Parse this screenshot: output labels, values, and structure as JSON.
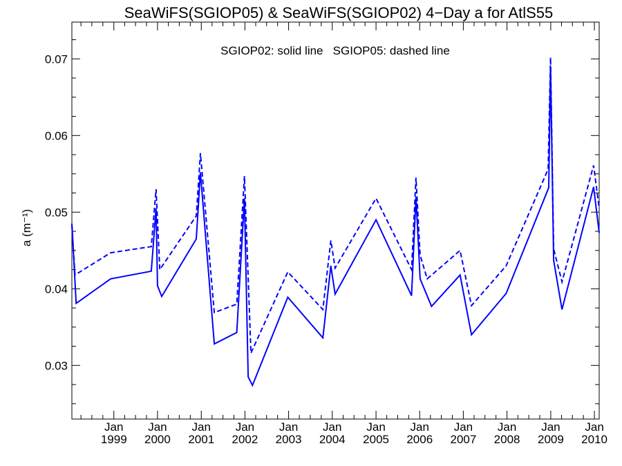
{
  "chart_data": {
    "type": "line",
    "title": "SeaWiFS(SGIOP05) & SeaWiFS(SGIOP02) 4−Day a for AtlS55",
    "annotation": "SGIOP02: solid line   SGIOP05: dashed line",
    "xlabel": "",
    "ylabel": "a (m⁻¹)",
    "xlim": [
      "1998-01-15",
      "2010-02-10"
    ],
    "ylim": [
      0.023,
      0.0748
    ],
    "yticks": [
      0.03,
      0.04,
      0.05,
      0.06,
      0.07
    ],
    "ytick_labels": [
      "0.03",
      "0.04",
      "0.05",
      "0.06",
      "0.07"
    ],
    "xticks": [
      "1999-01-01",
      "2000-01-01",
      "2001-01-01",
      "2002-01-01",
      "2003-01-01",
      "2004-01-01",
      "2005-01-01",
      "2006-01-01",
      "2007-01-01",
      "2008-01-01",
      "2009-01-01",
      "2010-01-01"
    ],
    "xtick_labels": [
      {
        "month": "Jan",
        "year": "1999"
      },
      {
        "month": "Jan",
        "year": "2000"
      },
      {
        "month": "Jan",
        "year": "2001"
      },
      {
        "month": "Jan",
        "year": "2002"
      },
      {
        "month": "Jan",
        "year": "2003"
      },
      {
        "month": "Jan",
        "year": "2004"
      },
      {
        "month": "Jan",
        "year": "2005"
      },
      {
        "month": "Jan",
        "year": "2006"
      },
      {
        "month": "Jan",
        "year": "2007"
      },
      {
        "month": "Jan",
        "year": "2008"
      },
      {
        "month": "Jan",
        "year": "2009"
      },
      {
        "month": "Jan",
        "year": "2010"
      }
    ],
    "series": [
      {
        "name": "SGIOP02",
        "style": "solid",
        "color": "#0000ff",
        "points": [
          [
            "1998-01-15",
            0.0485
          ],
          [
            "1998-02-20",
            0.0381
          ],
          [
            "1998-12-05",
            0.0413
          ],
          [
            "1999-11-10",
            0.0423
          ],
          [
            "1999-12-20",
            0.0505
          ],
          [
            "2000-01-01",
            0.0404
          ],
          [
            "2000-02-05",
            0.039
          ],
          [
            "2000-11-20",
            0.0465
          ],
          [
            "2000-12-25",
            0.0552
          ],
          [
            "2001-04-20",
            0.0328
          ],
          [
            "2001-10-25",
            0.0343
          ],
          [
            "2001-12-28",
            0.0518
          ],
          [
            "2002-01-28",
            0.0285
          ],
          [
            "2002-03-05",
            0.0274
          ],
          [
            "2002-12-25",
            0.0389
          ],
          [
            "2003-10-15",
            0.0336
          ],
          [
            "2003-12-20",
            0.043
          ],
          [
            "2004-01-25",
            0.0393
          ],
          [
            "2005-01-01",
            0.049
          ],
          [
            "2005-10-25",
            0.0391
          ],
          [
            "2005-12-01",
            0.052
          ],
          [
            "2006-01-05",
            0.0413
          ],
          [
            "2006-04-10",
            0.0377
          ],
          [
            "2006-12-05",
            0.0418
          ],
          [
            "2007-03-10",
            0.034
          ],
          [
            "2007-12-25",
            0.0394
          ],
          [
            "2008-12-15",
            0.0532
          ],
          [
            "2008-12-30",
            0.069
          ],
          [
            "2009-01-25",
            0.0437
          ],
          [
            "2009-04-05",
            0.0373
          ],
          [
            "2009-12-25",
            0.0533
          ],
          [
            "2010-02-10",
            0.0473
          ]
        ]
      },
      {
        "name": "SGIOP05",
        "style": "dashed",
        "color": "#0000ff",
        "points": [
          [
            "1998-01-15",
            0.0483
          ],
          [
            "1998-02-10",
            0.0418
          ],
          [
            "1998-12-05",
            0.0447
          ],
          [
            "1999-11-10",
            0.0455
          ],
          [
            "1999-12-20",
            0.053
          ],
          [
            "2000-01-20",
            0.0425
          ],
          [
            "2000-11-20",
            0.0495
          ],
          [
            "2000-12-25",
            0.0577
          ],
          [
            "2001-04-20",
            0.0369
          ],
          [
            "2001-10-25",
            0.038
          ],
          [
            "2001-12-28",
            0.0547
          ],
          [
            "2002-02-20",
            0.0316
          ],
          [
            "2002-12-25",
            0.0422
          ],
          [
            "2003-10-15",
            0.0373
          ],
          [
            "2003-12-20",
            0.0463
          ],
          [
            "2004-01-25",
            0.0427
          ],
          [
            "2005-01-01",
            0.0518
          ],
          [
            "2005-10-25",
            0.0425
          ],
          [
            "2005-12-01",
            0.0545
          ],
          [
            "2006-01-05",
            0.0444
          ],
          [
            "2006-03-05",
            0.0413
          ],
          [
            "2006-12-05",
            0.045
          ],
          [
            "2007-03-10",
            0.0378
          ],
          [
            "2007-12-25",
            0.043
          ],
          [
            "2008-12-10",
            0.0556
          ],
          [
            "2008-12-30",
            0.0702
          ],
          [
            "2009-01-25",
            0.0452
          ],
          [
            "2009-04-05",
            0.0409
          ],
          [
            "2009-12-25",
            0.0561
          ],
          [
            "2010-02-10",
            0.0505
          ]
        ]
      }
    ]
  }
}
